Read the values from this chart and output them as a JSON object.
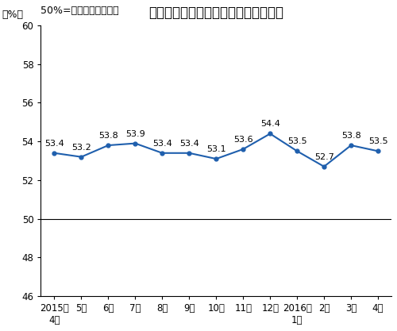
{
  "title": "非制造业商务活动指数（经季节调整）",
  "subtitle": "50%=与上月比较无变化",
  "ylabel": "（%）",
  "x_labels": [
    "2015年\n4月",
    "5月",
    "6月",
    "7月",
    "8月",
    "9月",
    "10月",
    "11月",
    "12月",
    "2016年\n1月",
    "2月",
    "3月",
    "4月"
  ],
  "values": [
    53.4,
    53.2,
    53.8,
    53.9,
    53.4,
    53.4,
    53.1,
    53.6,
    54.4,
    53.5,
    52.7,
    53.8,
    53.5
  ],
  "ylim": [
    46,
    60
  ],
  "yticks": [
    46,
    48,
    50,
    52,
    54,
    56,
    58,
    60
  ],
  "hline_y": 50,
  "line_color": "#1F5FAD",
  "marker": "o",
  "marker_size": 3.5,
  "line_width": 1.5,
  "title_fontsize": 12,
  "subtitle_fontsize": 9,
  "label_fontsize": 9,
  "tick_fontsize": 8.5,
  "annotation_fontsize": 8,
  "background_color": "#ffffff",
  "plot_bg_color": "#ffffff"
}
